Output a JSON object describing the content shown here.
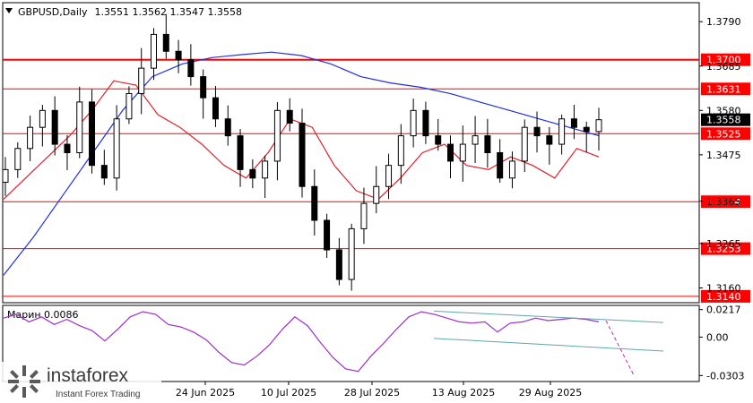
{
  "header": {
    "symbol": "GBPUSD,Daily",
    "ohlc": "1.3551 1.3562 1.3547 1.3558"
  },
  "colors": {
    "candle_bull": "#ffffff",
    "candle_bear": "#000000",
    "ma_fast": "#e0202a",
    "ma_slow": "#2030e0",
    "levels": "#ff0000",
    "oscillator": "#9b30c8",
    "trendline": "#5fa8a8",
    "projection": "#b030b0",
    "current_price_box": "#000000"
  },
  "logo": {
    "name": "instaforex",
    "tagline": "Instant Forex Trading"
  },
  "chart_data": [
    {
      "type": "candlestick",
      "title": "GBPUSD,Daily",
      "ylim": [
        1.3125,
        1.3835
      ],
      "yticks": [
        1.379,
        1.3685,
        1.358,
        1.3475,
        1.3365,
        1.3265,
        1.316
      ],
      "xtick_labels": [
        "24 Jun 2025",
        "10 Jul 2025",
        "28 Jul 2025",
        "13 Aug 2025",
        "29 Aug 2025"
      ],
      "levels": [
        {
          "label": "1.3700",
          "value": 1.37,
          "emphasis": true
        },
        {
          "label": "1.3631",
          "value": 1.3631
        },
        {
          "label": "1.3525",
          "value": 1.3525
        },
        {
          "label": "1.3364",
          "value": 1.3364
        },
        {
          "label": "1.3253",
          "value": 1.3253
        },
        {
          "label": "1.3140",
          "value": 1.314
        }
      ],
      "current_price": {
        "label": "1.3558",
        "value": 1.3558
      },
      "series": [
        {
          "name": "GBPUSD",
          "type": "ohlc",
          "close_path": [
            1.344,
            1.349,
            1.354,
            1.358,
            1.35,
            1.348,
            1.36,
            1.345,
            1.342,
            1.356,
            1.362,
            1.368,
            1.376,
            1.372,
            1.37,
            1.366,
            1.361,
            1.356,
            1.352,
            1.344,
            1.342,
            1.346,
            1.358,
            1.355,
            1.34,
            1.332,
            1.325,
            1.318,
            1.33,
            1.336,
            1.34,
            1.345,
            1.352,
            1.358,
            1.352,
            1.35,
            1.346,
            1.35,
            1.352,
            1.348,
            1.342,
            1.346,
            1.354,
            1.352,
            1.35,
            1.356,
            1.354,
            1.353,
            1.3558
          ]
        },
        {
          "name": "MA fast",
          "type": "line",
          "values": [
            1.337,
            1.342,
            1.347,
            1.352,
            1.358,
            1.365,
            1.364,
            1.357,
            1.354,
            1.35,
            1.345,
            1.342,
            1.348,
            1.356,
            1.354,
            1.345,
            1.339,
            1.337,
            1.342,
            1.348,
            1.35,
            1.345,
            1.344,
            1.347,
            1.345,
            1.342,
            1.349,
            1.347
          ]
        },
        {
          "name": "MA slow",
          "type": "line",
          "values": [
            1.319,
            1.328,
            1.338,
            1.348,
            1.358,
            1.366,
            1.369,
            1.3705,
            1.3712,
            1.3718,
            1.371,
            1.369,
            1.366,
            1.3645,
            1.3635,
            1.362,
            1.36,
            1.358,
            1.356,
            1.354,
            1.352
          ]
        }
      ]
    },
    {
      "type": "line",
      "title": "Марин 0.0086",
      "ylim": [
        -0.035,
        0.025
      ],
      "yticks": [
        0.0217,
        0.0,
        -0.0303
      ],
      "yticks_labels": [
        "0.0217",
        "0.00",
        "-0.0303"
      ],
      "series": [
        {
          "name": "Марин",
          "values": [
            0.015,
            0.018,
            0.012,
            0.016,
            0.01,
            0.014,
            0.009,
            0.005,
            -0.003,
            0.006,
            0.016,
            0.02,
            0.018,
            0.01,
            0.008,
            0.004,
            -0.002,
            -0.012,
            -0.02,
            -0.022,
            -0.015,
            -0.006,
            0.006,
            0.016,
            0.009,
            -0.004,
            -0.016,
            -0.025,
            -0.027,
            -0.015,
            -0.005,
            0.006,
            0.016,
            0.02,
            0.018,
            0.015,
            0.012,
            0.011,
            0.012,
            0.004,
            0.011,
            0.012,
            0.015,
            0.013,
            0.014,
            0.015,
            0.014,
            0.012
          ]
        }
      ]
    }
  ]
}
